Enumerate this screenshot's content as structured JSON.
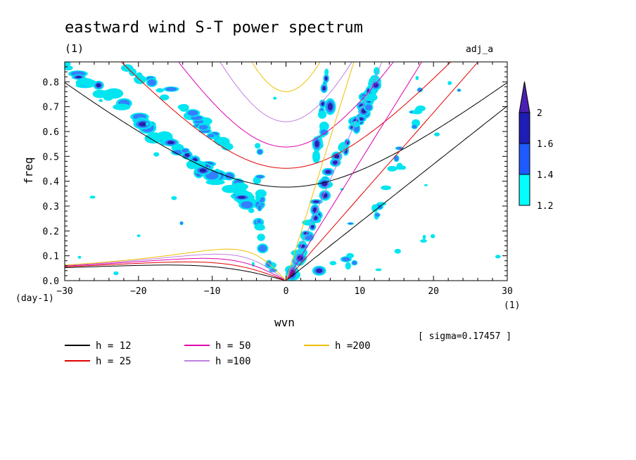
{
  "chart_data": {
    "type": "heatmap",
    "title": "eastward wind S-T power spectrum",
    "subtitle_left": "(1)",
    "subtitle_right": "adj_a",
    "xlabel": "wvn",
    "ylabel": "freq",
    "x_unit": "(1)",
    "y_unit": "(day-1)",
    "xlim": [
      -30,
      30
    ],
    "ylim": [
      0,
      0.88
    ],
    "xticks": [
      -30,
      -20,
      -10,
      0,
      10,
      20,
      30
    ],
    "yticks": [
      0,
      0.1,
      0.2,
      0.3,
      0.4,
      0.5,
      0.6,
      0.7,
      0.8
    ],
    "annotation": "[ sigma=0.17457 ]",
    "colorbar": {
      "levels": [
        1.2,
        1.4,
        1.6,
        2
      ],
      "colors": [
        "#00ffff",
        "#1e5aff",
        "#1e1eb4",
        "#4b1eb4"
      ],
      "extend": "max"
    },
    "contour_fill_colors": [
      "#00e5f0",
      "#3280ff",
      "#2820a8",
      "#3c1eaa"
    ],
    "dispersion_series": [
      {
        "name": "h = 12",
        "h": 12,
        "color": "#000000"
      },
      {
        "name": "h = 25",
        "h": 25,
        "color": "#e00000"
      },
      {
        "name": "h = 50",
        "h": 50,
        "color": "#e000b0"
      },
      {
        "name": "h =100",
        "h": 100,
        "color": "#c080e0"
      },
      {
        "name": "h =200",
        "h": 200,
        "color": "#f0c000"
      }
    ]
  }
}
